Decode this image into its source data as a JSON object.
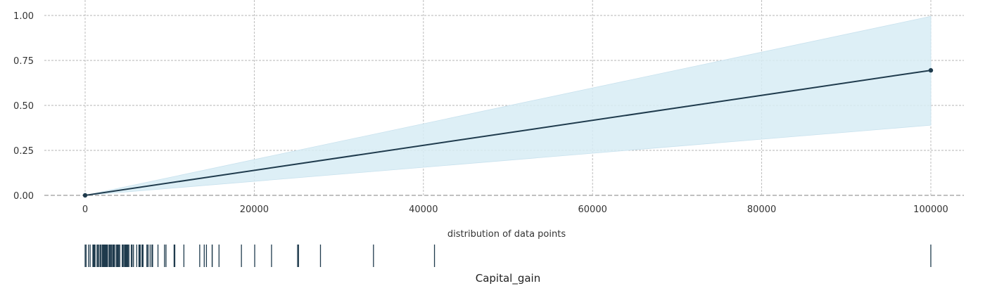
{
  "chart_data": {
    "type": "line",
    "xlabel": "Capital_gain",
    "ylabel": "",
    "xlim": [
      -5000,
      105000
    ],
    "ylim": [
      0,
      1
    ],
    "grid": true,
    "x_ticks": [
      "0",
      "20000",
      "40000",
      "60000",
      "80000",
      "100000"
    ],
    "y_ticks": [
      "0.00",
      "0.25",
      "0.50",
      "0.75",
      "1.00"
    ],
    "series": [
      {
        "x": [
          0,
          99999
        ],
        "y": [
          0.0,
          0.695
        ]
      }
    ],
    "confidence_band": {
      "x": [
        0,
        99999
      ],
      "lower": [
        0.0,
        0.39
      ],
      "upper": [
        0.0,
        0.995
      ]
    },
    "rug_title": "distribution of data points",
    "rug_values": [
      0,
      114,
      401,
      594,
      914,
      991,
      1055,
      1086,
      1111,
      1151,
      1173,
      1409,
      1424,
      1455,
      1471,
      1506,
      1639,
      1797,
      1831,
      1848,
      2009,
      2036,
      2050,
      2062,
      2105,
      2174,
      2176,
      2202,
      2228,
      2290,
      2329,
      2346,
      2354,
      2387,
      2407,
      2414,
      2463,
      2538,
      2580,
      2597,
      2635,
      2653,
      2829,
      2885,
      2907,
      2936,
      2961,
      2964,
      2977,
      2993,
      3103,
      3137,
      3273,
      3325,
      3411,
      3418,
      3432,
      3456,
      3464,
      3471,
      3674,
      3781,
      3818,
      3887,
      3908,
      3942,
      4064,
      4101,
      4386,
      4416,
      4508,
      4650,
      4687,
      4787,
      4865,
      4931,
      4934,
      5013,
      5060,
      5178,
      5455,
      5556,
      5721,
      6097,
      6360,
      6418,
      6497,
      6514,
      6723,
      6767,
      6849,
      7298,
      7430,
      7443,
      7688,
      7896,
      7978,
      8614,
      9386,
      9562,
      10520,
      10566,
      10605,
      11678,
      13550,
      14084,
      14344,
      15020,
      15024,
      15831,
      18481,
      20051,
      22040,
      25124,
      25236,
      27828,
      34095,
      41310,
      99999
    ],
    "line_color": "#1f3b4d",
    "band_color": "#d7ecf5",
    "rug_color": "#1f3b4d"
  }
}
